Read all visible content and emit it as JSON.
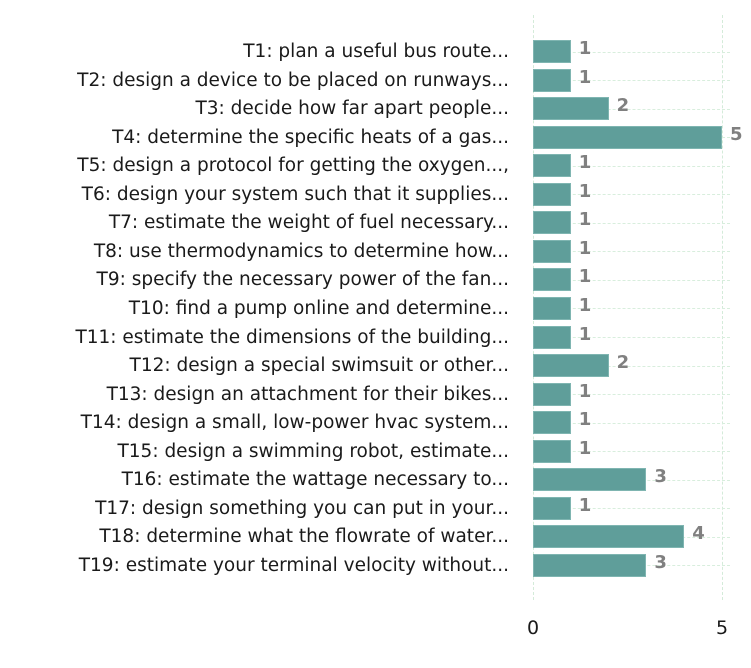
{
  "chart_data": {
    "type": "bar",
    "orientation": "horizontal",
    "title": "",
    "xlabel": "",
    "ylabel": "",
    "xlim": [
      0,
      5
    ],
    "x_ticks": [
      "0",
      "5"
    ],
    "grid": true,
    "bar_color": "#5f9e9a",
    "value_label_color": "#808080",
    "categories": [
      "T1: plan a useful bus route...",
      "T2: design a device to be placed on runways...",
      "T3: decide how far apart people...",
      "T4: determine the specific heats of a gas...",
      "T5: design a protocol for getting the oxygen...,",
      "T6: design your system such that it supplies...",
      "T7: estimate the weight of fuel necessary...",
      "T8: use thermodynamics to determine how...",
      "T9: specify the necessary power of the fan...",
      "T10: find a pump online and determine...",
      "T11: estimate the dimensions of the building...",
      "T12: design a special swimsuit or other...",
      "T13: design an attachment for their bikes...",
      "T14: design a small, low-power hvac system...",
      "T15: design a swimming robot, estimate...",
      "T16: estimate the wattage necessary to...",
      "T17: design something you can put in your...",
      "T18: determine what the flowrate of water...",
      "T19: estimate your terminal velocity without..."
    ],
    "values": [
      1,
      1,
      2,
      5,
      1,
      1,
      1,
      1,
      1,
      1,
      1,
      2,
      1,
      1,
      1,
      3,
      1,
      4,
      3
    ]
  }
}
